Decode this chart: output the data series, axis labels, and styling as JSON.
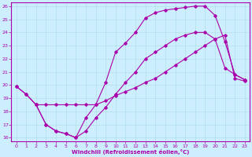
{
  "xlabel": "Windchill (Refroidissement éolien,°C)",
  "xlim_min": -0.5,
  "xlim_max": 23.5,
  "ylim_min": 15.7,
  "ylim_max": 26.3,
  "xticks": [
    0,
    1,
    2,
    3,
    4,
    5,
    6,
    7,
    8,
    9,
    10,
    11,
    12,
    13,
    14,
    15,
    16,
    17,
    18,
    19,
    20,
    21,
    22,
    23
  ],
  "yticks": [
    16,
    17,
    18,
    19,
    20,
    21,
    22,
    23,
    24,
    25,
    26
  ],
  "bg_color": "#cceeff",
  "grid_color": "#aadddd",
  "line_color": "#aa00aa",
  "line1_x": [
    0,
    1,
    2,
    3,
    4,
    5,
    6,
    7,
    8,
    9,
    10,
    11,
    12,
    13,
    14,
    15,
    16,
    17,
    18,
    19,
    20,
    21,
    22,
    23
  ],
  "line1_y": [
    19.9,
    19.3,
    18.5,
    17.0,
    16.5,
    16.3,
    16.0,
    17.5,
    18.5,
    20.2,
    22.5,
    23.2,
    24.0,
    25.1,
    25.5,
    25.7,
    25.8,
    25.9,
    26.0,
    26.0,
    25.3,
    23.3,
    20.8,
    20.4
  ],
  "line2_x": [
    0,
    1,
    2,
    3,
    4,
    5,
    6,
    7,
    8,
    9,
    10,
    11,
    12,
    13,
    14,
    15,
    16,
    17,
    18,
    19,
    20,
    21,
    22,
    23
  ],
  "line2_y": [
    19.9,
    19.3,
    18.5,
    17.0,
    16.5,
    16.3,
    16.0,
    16.5,
    17.5,
    18.3,
    19.3,
    20.2,
    21.0,
    22.0,
    22.5,
    23.0,
    23.5,
    23.8,
    24.0,
    24.0,
    23.5,
    21.3,
    20.8,
    20.4
  ],
  "line3_x": [
    2,
    3,
    4,
    5,
    6,
    7,
    8,
    9,
    10,
    11,
    12,
    13,
    14,
    15,
    16,
    17,
    18,
    19,
    20,
    21,
    22,
    23
  ],
  "line3_y": [
    18.5,
    18.5,
    18.5,
    18.5,
    18.5,
    18.5,
    18.5,
    18.8,
    19.2,
    19.5,
    19.8,
    20.2,
    20.5,
    21.0,
    21.5,
    22.0,
    22.5,
    23.0,
    23.5,
    23.8,
    20.5,
    20.3
  ]
}
